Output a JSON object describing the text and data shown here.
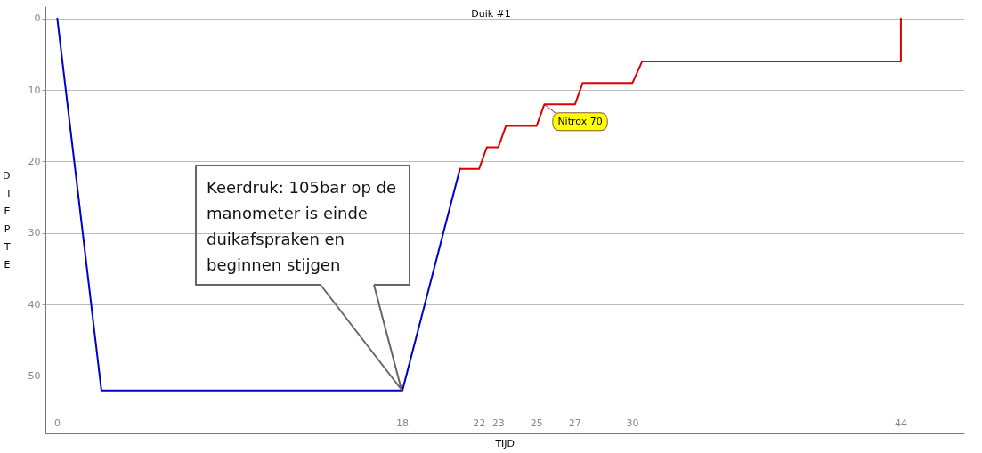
{
  "chart_data": {
    "type": "line",
    "title": "Duik #1",
    "xlabel": "TIJD",
    "ylabel": "DIEPTE",
    "xlim": [
      -0.6,
      47.3
    ],
    "xticks": [
      0,
      18,
      22,
      23,
      25,
      27,
      30,
      44
    ],
    "ylim": [
      58,
      -1.6
    ],
    "yticks": [
      0,
      10,
      20,
      30,
      40,
      50
    ],
    "grid": "y",
    "marker": "none",
    "line_style": "solid",
    "series": [
      {
        "color": "#0000cc",
        "x": [
          0,
          2.3,
          18,
          21
        ],
        "values": [
          0,
          52,
          52,
          21
        ]
      },
      {
        "color": "#dd0000",
        "x": [
          21,
          22,
          22.4,
          23,
          23.4,
          25,
          25.4,
          27,
          27.4,
          30,
          30.5,
          44,
          44
        ],
        "values": [
          21,
          21,
          18,
          18,
          15,
          15,
          12,
          12,
          9,
          9,
          6,
          6,
          0
        ]
      }
    ],
    "annotations": [
      "Keerdruk: 105bar op de manometer is einde duikafspraken en beginnen stijgen",
      {
        "text": "Nitrox 70",
        "x": 25.4,
        "y": 12
      }
    ]
  }
}
